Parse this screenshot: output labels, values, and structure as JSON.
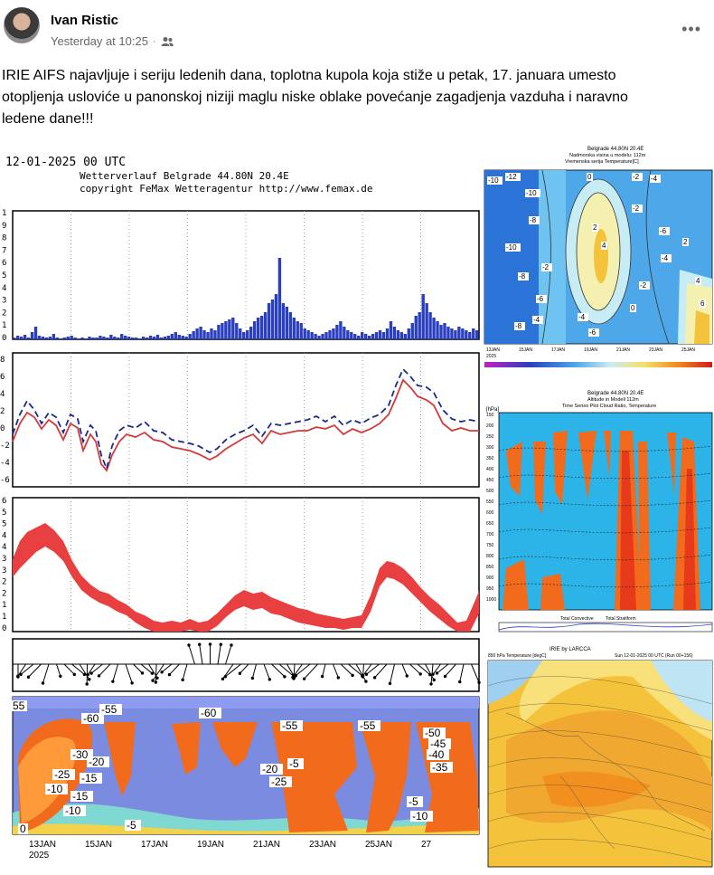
{
  "post": {
    "author": "Ivan Ristic",
    "timestamp": "Yesterday at 10:25",
    "audience_icon": "friends-icon",
    "more_label": "•••",
    "text_lines": [
      "IRIE AIFS najavljuje i seriju ledenih dana, toplotna kupola koja stiže u petak, 17. januara umesto",
      "otopljenja usloviće u panonskoj niziji maglu niske oblake povećanje zagadjenja vazduha i naravno",
      "ledene dane!!!"
    ]
  },
  "meteogram": {
    "header_date": "12-01-2025 00 UTC",
    "header_title": "Wetterverlauf Belgrade  44.80N 20.4E",
    "header_copyright": "copyright FeMax Wetteragentur http://www.femax.de",
    "precip_axis": [
      "1",
      "9",
      "8",
      "7",
      "6",
      "5",
      "4",
      "3",
      "2",
      "1",
      "0"
    ],
    "temp_axis": [
      "8",
      "6",
      "4",
      "2",
      "0",
      "-2",
      "-4",
      "-6"
    ],
    "wind_axis": [
      "6",
      "5",
      "5",
      "4",
      "4",
      "3",
      "3",
      "2",
      "2",
      "1",
      "1",
      "0"
    ],
    "x_labels": [
      "13JAN",
      "15JAN",
      "17JAN",
      "19JAN",
      "21JAN",
      "23JAN",
      "25JAN",
      "27"
    ],
    "x_year": "2025",
    "cross_section_labels": [
      "55",
      "-60",
      "-55",
      "-60",
      "-55",
      "-55",
      "-50",
      "-45",
      "-40",
      "-35",
      "-30",
      "-25",
      "-20",
      "-15",
      "-10",
      "-5",
      "0",
      "-10",
      "-15",
      "-20",
      "-25",
      "-5",
      "-5",
      "-10"
    ]
  },
  "panel_right_top": {
    "title_line1": "Belgrade  44.80N 20.4E",
    "title_line2": "Nadmorska visina u modelu: 112m",
    "title_line3": "Vremenska serija Temperature[C]",
    "contour_labels": [
      "-10",
      "-12",
      "-10",
      "-8",
      "-10",
      "-8",
      "-6",
      "-4",
      "-2",
      "0",
      "2",
      "4",
      "-2",
      "-4",
      "-6",
      "-4",
      "-2",
      "0",
      "2",
      "4",
      "6",
      "-2",
      "-4",
      "-6",
      "-8"
    ],
    "x_labels": [
      "13JAN",
      "15JAN",
      "17JAN",
      "19JAN",
      "21JAN",
      "23JAN",
      "25JAN"
    ],
    "x_year": "2025"
  },
  "panel_right_mid": {
    "title_line1": "Belgrade  44.80N 20.4E",
    "title_line2": "Altitude in Modell 112m",
    "title_line3": "Time Series Plot Cloud Ratio, Temperature",
    "y_unit": "[hPa]",
    "y_labels": [
      "150",
      "200",
      "250",
      "300",
      "350",
      "400",
      "450",
      "500",
      "550",
      "600",
      "650",
      "700",
      "750",
      "800",
      "850",
      "900",
      "950",
      "1000"
    ],
    "legend": [
      "Total Convective",
      "Total Stratiform"
    ]
  },
  "panel_right_bottom": {
    "title": "IRIE by LARCCA",
    "subtitle_left": "850 hPa Temperature [degC]",
    "subtitle_right": "Sun 12-01-2025 00 UTC (Run 00+156)"
  },
  "colors": {
    "cold_blue": "#7b8ce0",
    "precip_bar": "#2a3fbf",
    "temp_red": "#d43a3a",
    "temp_blue": "#1a2a8a",
    "wind_band": "#e84040",
    "cloud_orange": "#f26a1b",
    "cyan_bg": "#2cb4e8",
    "map_yellow": "#f5c33b"
  }
}
